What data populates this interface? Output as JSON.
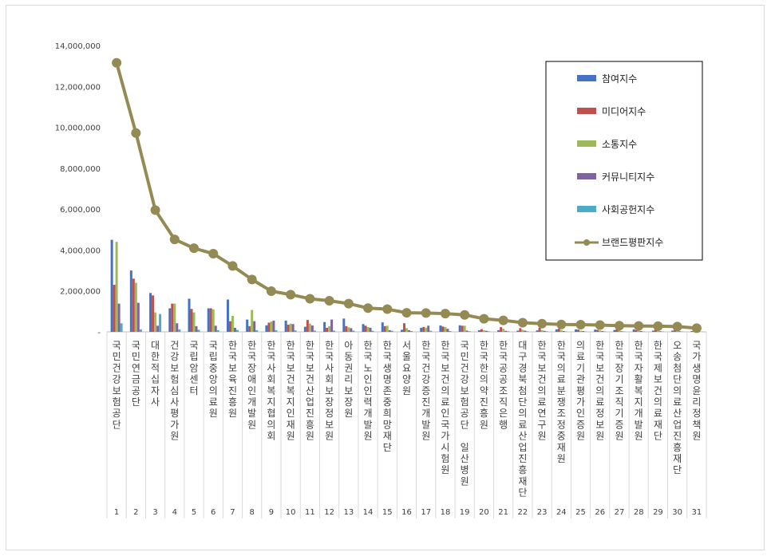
{
  "chart_data": {
    "type": "bar",
    "title": "",
    "xlabel": "",
    "ylabel": "",
    "ylim": [
      0,
      14000000
    ],
    "yticks": [
      0,
      2000000,
      4000000,
      6000000,
      8000000,
      10000000,
      12000000,
      14000000
    ],
    "ytick_labels": [
      "-",
      "2,000,000",
      "4,000,000",
      "6,000,000",
      "8,000,000",
      "10,000,000",
      "12,000,000",
      "14,000,000"
    ],
    "grid": false,
    "legend_position": "top-right",
    "categories": [
      "국민건강보험공단",
      "국민연금공단",
      "대한적십자사",
      "건강보험심사평가원",
      "국립암센터",
      "국립중앙의료원",
      "한국보육진흥원",
      "한국장애인개발원",
      "한국사회복지협의회",
      "한국보건복지인재원",
      "한국보건산업진흥원",
      "한국사회보장정보원",
      "아동권리보장원",
      "한국노인인력개발원",
      "한국생명존중희망재단",
      "서울요양원",
      "한국건강증진개발원",
      "한국보건의료인국가시험원",
      "국민건강보험공단 일산병원",
      "한국한의약진흥원",
      "한국공공조직은행",
      "대구경북첨단의료산업진흥재단",
      "한국보건의료연구원",
      "한국의료분쟁조정중재원",
      "의료기관평가인증원",
      "한국보건의료정보원",
      "한국장기조직기증원",
      "한국자활복지개발원",
      "한국제보건의료재단",
      "오송첨단의료산업진흥재단",
      "국가생명윤리정책원"
    ],
    "ranks": [
      "1",
      "2",
      "3",
      "4",
      "5",
      "6",
      "7",
      "8",
      "9",
      "10",
      "11",
      "12",
      "13",
      "14",
      "15",
      "16",
      "17",
      "18",
      "19",
      "20",
      "21",
      "22",
      "23",
      "24",
      "25",
      "26",
      "27",
      "28",
      "29",
      "30",
      "31"
    ],
    "series": [
      {
        "name": "참여지수",
        "kind": "bar",
        "color": "#4472c4",
        "values": [
          4500000,
          3000000,
          1900000,
          1150000,
          1620000,
          1150000,
          1580000,
          600000,
          320000,
          550000,
          250000,
          480000,
          650000,
          380000,
          460000,
          100000,
          200000,
          310000,
          320000,
          80000,
          80000,
          60000,
          70000,
          120000,
          120000,
          110000,
          90000,
          120000,
          60000,
          60000,
          40000
        ]
      },
      {
        "name": "미디어지수",
        "kind": "bar",
        "color": "#c0504d",
        "values": [
          2300000,
          2600000,
          1780000,
          1380000,
          1120000,
          1150000,
          520000,
          280000,
          450000,
          350000,
          580000,
          200000,
          280000,
          300000,
          280000,
          420000,
          240000,
          260000,
          300000,
          130000,
          230000,
          180000,
          200000,
          160000,
          110000,
          100000,
          140000,
          90000,
          160000,
          120000,
          40000
        ]
      },
      {
        "name": "소통지수",
        "kind": "bar",
        "color": "#9bbb59",
        "values": [
          4400000,
          2400000,
          950000,
          1380000,
          950000,
          1100000,
          780000,
          1070000,
          500000,
          400000,
          400000,
          280000,
          220000,
          240000,
          300000,
          180000,
          200000,
          230000,
          300000,
          80000,
          150000,
          100000,
          90000,
          90000,
          60000,
          70000,
          80000,
          60000,
          100000,
          80000,
          50000
        ]
      },
      {
        "name": "커뮤니티지수",
        "kind": "bar",
        "color": "#8064a2",
        "values": [
          1380000,
          1420000,
          300000,
          420000,
          280000,
          300000,
          200000,
          520000,
          550000,
          380000,
          310000,
          600000,
          180000,
          200000,
          80000,
          80000,
          300000,
          150000,
          60000,
          50000,
          50000,
          60000,
          50000,
          40000,
          40000,
          40000,
          30000,
          40000,
          30000,
          30000,
          20000
        ]
      },
      {
        "name": "사회공헌지수",
        "kind": "bar",
        "color": "#4bacc6",
        "values": [
          420000,
          120000,
          870000,
          120000,
          100000,
          80000,
          90000,
          80000,
          80000,
          70000,
          60000,
          60000,
          60000,
          50000,
          50000,
          40000,
          50000,
          40000,
          30000,
          30000,
          30000,
          30000,
          30000,
          20000,
          20000,
          20000,
          20000,
          20000,
          20000,
          20000,
          10000
        ]
      },
      {
        "name": "브랜드평판지수",
        "kind": "line",
        "color": "#948a54",
        "values": [
          13150000,
          9720000,
          5950000,
          4520000,
          4090000,
          3820000,
          3220000,
          2560000,
          1990000,
          1820000,
          1620000,
          1520000,
          1380000,
          1160000,
          1110000,
          930000,
          920000,
          890000,
          830000,
          640000,
          560000,
          450000,
          400000,
          360000,
          350000,
          330000,
          300000,
          290000,
          280000,
          260000,
          180000
        ]
      }
    ]
  }
}
